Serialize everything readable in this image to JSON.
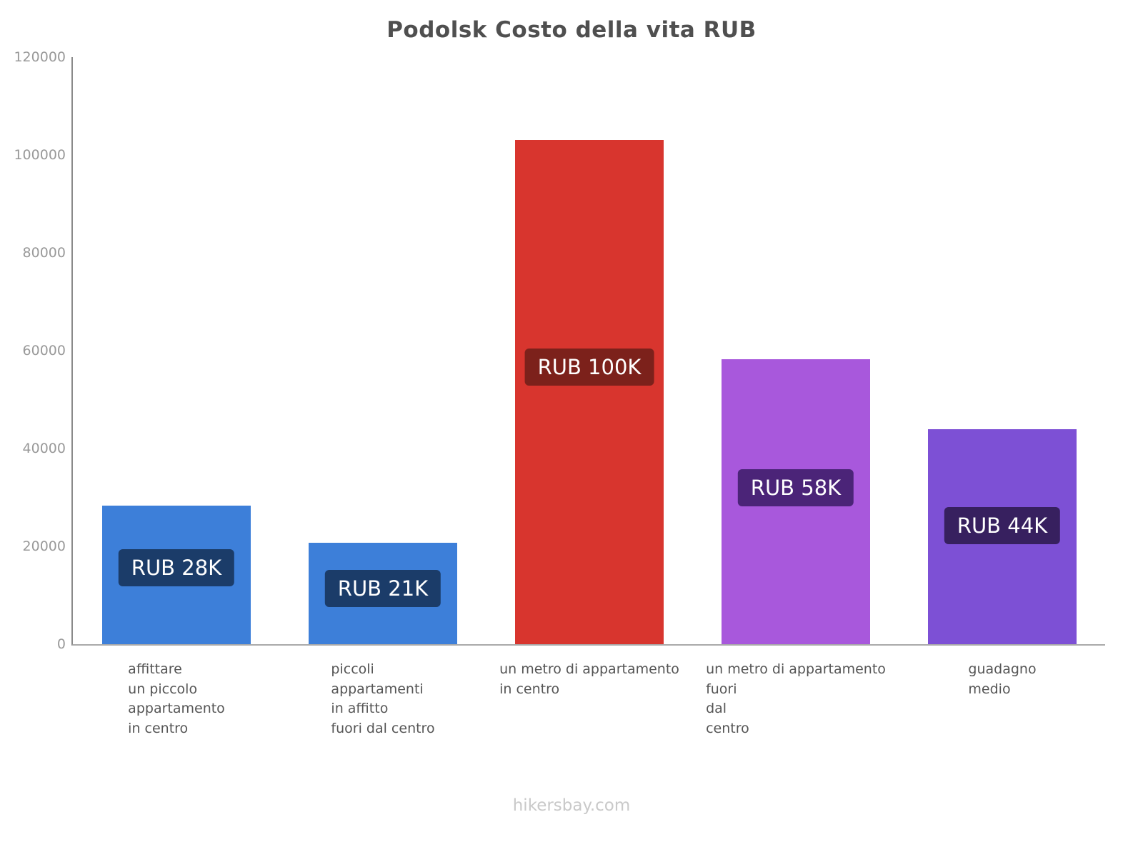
{
  "page": {
    "footer": "hikersbay.com"
  },
  "chart_data": {
    "type": "bar",
    "title": "Podolsk Costo della vita RUB",
    "currency": "RUB",
    "xlabel": "",
    "ylabel": "",
    "ylim": [
      0,
      120000
    ],
    "yticks": [
      0,
      20000,
      40000,
      60000,
      80000,
      100000,
      120000
    ],
    "grid": false,
    "legend": false,
    "categories": [
      "affittare un piccolo appartamento in centro",
      "piccoli appartamenti in affitto fuori dal centro",
      "un metro di appartamento in centro",
      "un metro di appartamento fuori dal centro",
      "guadagno medio"
    ],
    "bars": [
      {
        "category_display": "affittare\nun piccolo\nappartamento\nin centro",
        "value": 28300,
        "label": "RUB 28K",
        "color": "#3d7fd9",
        "label_bg": "#1b3c69"
      },
      {
        "category_display": "piccoli\nappartamenti\nin affitto\nfuori dal centro",
        "value": 20800,
        "label": "RUB 21K",
        "color": "#3d7fd9",
        "label_bg": "#1b3c69"
      },
      {
        "category_display": "un metro di appartamento\nin centro",
        "value": 103000,
        "label": "RUB 100K",
        "color": "#d8352e",
        "label_bg": "#7c211b"
      },
      {
        "category_display": "un metro di appartamento\nfuori\ndal\ncentro",
        "value": 58300,
        "label": "RUB 58K",
        "color": "#a858dc",
        "label_bg": "#4b2478"
      },
      {
        "category_display": "guadagno\nmedio",
        "value": 43900,
        "label": "RUB 44K",
        "color": "#7d50d5",
        "label_bg": "#37205f"
      }
    ]
  }
}
